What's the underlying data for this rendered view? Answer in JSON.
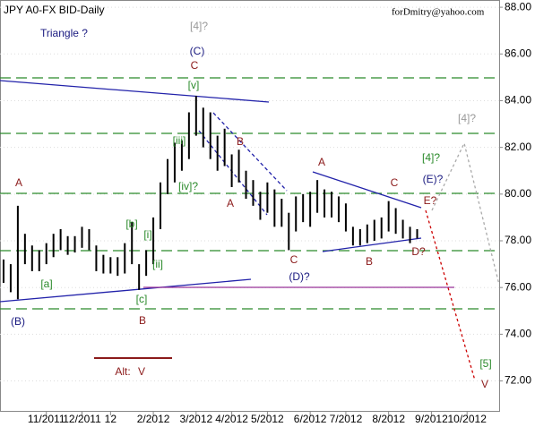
{
  "chart_data": {
    "type": "ohlc",
    "title": "JPY A0-FX BID-Daily",
    "subtitle": "forDmitry@yahoo.com",
    "color": "#000000",
    "categories": [
      null,
      null,
      null,
      null,
      null,
      null,
      "11/2011",
      null,
      null,
      null,
      null,
      "12/2011",
      null,
      null,
      null,
      "12",
      null,
      null,
      null,
      null,
      null,
      "2/2012",
      null,
      null,
      null,
      null,
      null,
      "3/2012",
      null,
      null,
      null,
      null,
      "4/2012",
      null,
      null,
      null,
      null,
      "5/2012",
      null,
      null,
      null,
      null,
      null,
      "6/2012",
      null,
      null,
      null,
      null,
      "7/2012",
      null,
      null,
      null,
      null,
      null,
      "8/2012",
      null,
      null,
      null,
      null,
      null,
      "9/2012",
      null,
      null,
      null,
      null,
      "10/2012",
      null,
      null,
      null,
      null
    ],
    "high": [
      77.2,
      77,
      79.5,
      78.3,
      77.8,
      77.6,
      77.9,
      78.3,
      78.5,
      78.2,
      78.2,
      78.6,
      78.5,
      77.8,
      77.4,
      77.3,
      77.3,
      77.9,
      78.8,
      77,
      77.6,
      79,
      80.5,
      81.5,
      82.2,
      82.3,
      83.5,
      84.2,
      83.7,
      83.5,
      82.5,
      82.8,
      81.7,
      81.9,
      81,
      80.6,
      80.1,
      80.5,
      80.2,
      79.8,
      79.2,
      79.9,
      80,
      80.1,
      80.6,
      80.2,
      80.1,
      79.9,
      79.6,
      78.6,
      78.5,
      78.7,
      78.9,
      79,
      79.7,
      79.4,
      78.9,
      78.6,
      78.5,
      null,
      null,
      null,
      null,
      null,
      null,
      null,
      null,
      null,
      null,
      null
    ],
    "low": [
      76.2,
      75.8,
      75.5,
      77,
      76.7,
      76.7,
      77,
      77.3,
      77.6,
      77.4,
      77.5,
      77.7,
      77.6,
      76.7,
      76.6,
      76.6,
      76.5,
      76.6,
      77,
      75.9,
      76.5,
      77,
      78.5,
      80,
      80.5,
      81,
      81.5,
      82.5,
      82,
      81.5,
      81,
      81.2,
      80.3,
      80.5,
      79.8,
      79.5,
      78.9,
      79.2,
      78.6,
      78.6,
      77.6,
      78.4,
      78.8,
      78.6,
      79.2,
      79,
      79,
      78.8,
      78.4,
      77.8,
      77.8,
      77.9,
      78,
      78.1,
      78.4,
      78.3,
      78.1,
      77.9,
      78.1,
      null,
      null,
      null,
      null,
      null,
      null,
      null,
      null,
      null,
      null,
      null
    ],
    "ylim": [
      70.68,
      88.31
    ],
    "yticks": [
      {
        "value": 72,
        "label": "72.00"
      },
      {
        "value": 74,
        "label": "74.00"
      },
      {
        "value": 76,
        "label": "76.00"
      },
      {
        "value": 78,
        "label": "78.00"
      },
      {
        "value": 80,
        "label": "80.00"
      },
      {
        "value": 82,
        "label": "82.00"
      },
      {
        "value": 84,
        "label": "84.00"
      },
      {
        "value": 86,
        "label": "86.00"
      },
      {
        "value": 88,
        "label": "88.00"
      }
    ],
    "annotations": [
      "Triangle ?",
      "[4]?",
      "(C)",
      "C",
      "[v]",
      "B",
      "A",
      "[iii]",
      "[iv]?",
      "[b]",
      "[i]",
      "[ii]",
      "[a]",
      "[c]",
      "A",
      "(B)",
      "B",
      "C",
      "(D)?",
      "A",
      "B",
      "C",
      "(E)?",
      "E?",
      "D?",
      "[4]?",
      "[4]?",
      "[5]",
      "V",
      "Alt:",
      "V"
    ]
  }
}
